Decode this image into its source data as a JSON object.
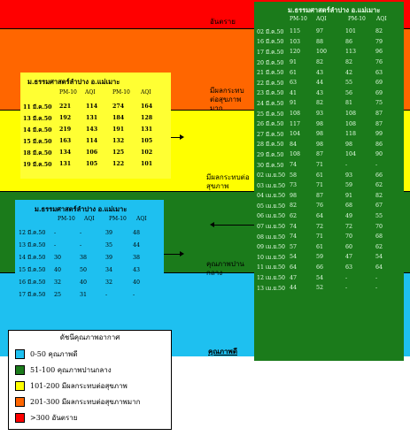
{
  "scale": {
    "labels": {
      "hazard": "อันตราย",
      "very_unhealthy": "มีผลกระทบ\nต่อสุขภาพ\nมาก",
      "unhealthy": "มีผลกระทบต่อ\nสุขภาพ",
      "moderate": "คุณภาพปาน\nกลาง",
      "good": "คุณภาพดี"
    },
    "colors": {
      "hazard": "#ff0000",
      "very_unhealthy": "#ff6600",
      "unhealthy": "#ffff00",
      "moderate": "#1b7b1b",
      "good": "#1ec0f0"
    }
  },
  "yellow_panel": {
    "title": "ม.ธรรมศาสตร์ลำปาง    อ.แม่เมาะ",
    "headers": [
      "PM-10",
      "AQI",
      "PM-10",
      "AQI"
    ],
    "rows": [
      [
        "11 มี.ค.50",
        "221",
        "114",
        "274",
        "164"
      ],
      [
        "13 มี.ค.50",
        "192",
        "131",
        "184",
        "128"
      ],
      [
        "14 มี.ค.50",
        "219",
        "143",
        "191",
        "131"
      ],
      [
        "15 มี.ค.50",
        "163",
        "114",
        "132",
        "105"
      ],
      [
        "18 มี.ค.50",
        "134",
        "106",
        "125",
        "102"
      ],
      [
        "19 มี.ค.50",
        "131",
        "105",
        "122",
        "101"
      ]
    ]
  },
  "cyan_panel": {
    "title": "ม.ธรรมศาสตร์ลำปาง    อ.แม่เมาะ",
    "headers": [
      "PM-10",
      "AQI",
      "PM-10",
      "AQI"
    ],
    "rows": [
      [
        "12 มี.ค.50",
        "-",
        "-",
        "39",
        "48"
      ],
      [
        "13 มี.ค.50",
        "-",
        "-",
        "35",
        "44"
      ],
      [
        "14 มี.ค.50",
        "30",
        "38",
        "39",
        "38"
      ],
      [
        "15 มี.ค.50",
        "40",
        "50",
        "34",
        "43"
      ],
      [
        "16 มี.ค.50",
        "32",
        "40",
        "32",
        "40"
      ],
      [
        "17 มี.ค.50",
        "25",
        "31",
        "-",
        "-"
      ]
    ]
  },
  "green_panel": {
    "title": "ม.ธรรมศาสตร์ลำปาง    อ.แม่เมาะ",
    "headers": [
      "PM-10",
      "AQI",
      "PM-10",
      "AQI"
    ],
    "rows": [
      [
        "02 มี.ค.50",
        "115",
        "97",
        "101",
        "82"
      ],
      [
        "16 มี.ค.50",
        "103",
        "88",
        "86",
        "79"
      ],
      [
        "17 มี.ค.50",
        "120",
        "100",
        "113",
        "96"
      ],
      [
        "20 มี.ค.50",
        "91",
        "82",
        "82",
        "76"
      ],
      [
        "21 มี.ค.50",
        "61",
        "43",
        "42",
        "63"
      ],
      [
        "22 มี.ค.50",
        "63",
        "44",
        "55",
        "69"
      ],
      [
        "23 มี.ค.50",
        "41",
        "43",
        "56",
        "69"
      ],
      [
        "24 มี.ค.50",
        "91",
        "82",
        "81",
        "75"
      ],
      [
        "25 มี.ค.50",
        "108",
        "93",
        "108",
        "87"
      ],
      [
        "26 มี.ค.50",
        "117",
        "98",
        "108",
        "87"
      ],
      [
        "27 มี.ค.50",
        "104",
        "98",
        "118",
        "99"
      ],
      [
        "28 มี.ค.50",
        "84",
        "98",
        "98",
        "86"
      ],
      [
        "29 มี.ค.50",
        "108",
        "87",
        "104",
        "90"
      ],
      [
        "30 มี.ค.50",
        "74",
        "71",
        "-",
        "-"
      ],
      [
        "02 เม.ย.50",
        "58",
        "61",
        "93",
        "66"
      ],
      [
        "03 เม.ย.50",
        "73",
        "71",
        "59",
        "62"
      ],
      [
        "04 เม.ย.50",
        "98",
        "87",
        "91",
        "82"
      ],
      [
        "05 เม.ย.50",
        "82",
        "76",
        "68",
        "67"
      ],
      [
        "06 เม.ย.50",
        "62",
        "64",
        "49",
        "55"
      ],
      [
        "07 เม.ย.50",
        "74",
        "72",
        "72",
        "70"
      ],
      [
        "08 เม.ย.50",
        "74",
        "71",
        "70",
        "68"
      ],
      [
        "09 เม.ย.50",
        "57",
        "61",
        "60",
        "62"
      ],
      [
        "10 เม.ย.50",
        "54",
        "59",
        "47",
        "54"
      ],
      [
        "11 เม.ย.50",
        "64",
        "66",
        "63",
        "64"
      ],
      [
        "12 เม.ย.50",
        "47",
        "54",
        "-",
        "-"
      ],
      [
        "13 เม.ย.50",
        "44",
        "52",
        "-",
        "-"
      ]
    ]
  },
  "legend": {
    "title": "ดัชนีคุณภาพอากาศ",
    "items": [
      {
        "color": "#1ec0f0",
        "text": "0-50 คุณภาพดี"
      },
      {
        "color": "#1b7b1b",
        "text": "51-100 คุณภาพปานกลาง"
      },
      {
        "color": "#ffff00",
        "text": "101-200 มีผลกระทบต่อสุขภาพ"
      },
      {
        "color": "#ff6600",
        "text": "201-300 มีผลกระทบต่อสุขภาพมาก"
      },
      {
        "color": "#ff0000",
        "text": ">300 อันตราย"
      }
    ]
  }
}
